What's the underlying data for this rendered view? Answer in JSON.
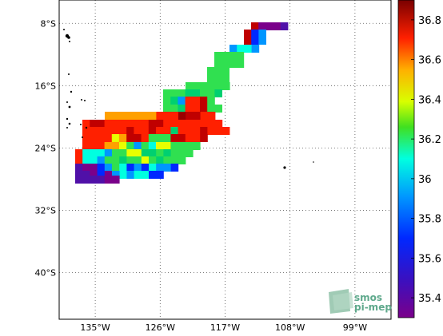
{
  "map": {
    "lon_range": [
      -140,
      -94
    ],
    "lat_range": [
      -46,
      -5
    ],
    "lon_ticks": [
      {
        "value": -135,
        "label": "135°W"
      },
      {
        "value": -126,
        "label": "126°W"
      },
      {
        "value": -117,
        "label": "117°W"
      },
      {
        "value": -108,
        "label": "108°W"
      },
      {
        "value": -99,
        "label": "99°W"
      }
    ],
    "lat_ticks": [
      {
        "value": -8,
        "label": "8°S"
      },
      {
        "value": -16,
        "label": "16°S"
      },
      {
        "value": -24,
        "label": "24°S"
      },
      {
        "value": -32,
        "label": "32°S"
      },
      {
        "value": -40,
        "label": "40°S"
      }
    ],
    "grid": "dotted"
  },
  "colorbar": {
    "range": [
      35.3,
      36.9
    ],
    "tick_labels": [
      {
        "value": 36.8,
        "label": "36.8"
      },
      {
        "value": 36.6,
        "label": "36.6"
      },
      {
        "value": 36.4,
        "label": "36.4"
      },
      {
        "value": 36.2,
        "label": "36.2"
      },
      {
        "value": 36.0,
        "label": "36"
      },
      {
        "value": 35.8,
        "label": "35.8"
      },
      {
        "value": 35.6,
        "label": "35.6"
      },
      {
        "value": 35.4,
        "label": "35.4"
      }
    ]
  },
  "logo": {
    "line1": "smos",
    "line2": "pi-mep"
  }
}
